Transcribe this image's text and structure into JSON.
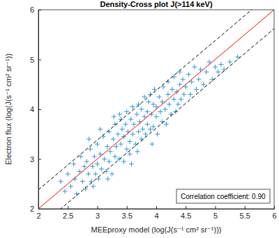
{
  "chart_data": {
    "type": "scatter",
    "title": "Density-Cross plot J(>114 keV)",
    "x_label": "MEEproxy model (log(J(s⁻¹ cm² sr⁻¹)))",
    "y_label": "Electron flux (log(J(s⁻¹ cm² sr⁻¹))",
    "color": "#2b9ad6",
    "marker": "plus",
    "grid": false,
    "xlim": [
      2,
      6
    ],
    "xticks": [
      2,
      2.5,
      3,
      3.5,
      4,
      4.5,
      5,
      5.5,
      6
    ],
    "ylim": [
      2,
      6
    ],
    "yticks": [
      2,
      3,
      4,
      5,
      6
    ],
    "x": [
      2.38,
      2.45,
      2.5,
      2.55,
      2.6,
      2.62,
      2.65,
      2.7,
      2.72,
      2.75,
      2.78,
      2.8,
      2.82,
      2.85,
      2.88,
      2.9,
      2.92,
      2.95,
      2.97,
      3.0,
      3.0,
      3.02,
      2.86,
      2.93,
      3.05,
      3.07,
      3.1,
      3.12,
      3.15,
      3.17,
      3.2,
      3.2,
      3.22,
      3.25,
      3.27,
      3.3,
      3.3,
      3.32,
      3.05,
      3.18,
      3.28,
      3.35,
      3.37,
      3.4,
      3.4,
      3.42,
      3.45,
      3.45,
      3.48,
      3.5,
      3.5,
      3.52,
      3.55,
      3.55,
      3.57,
      3.6,
      3.6,
      3.38,
      3.58,
      3.62,
      3.65,
      3.67,
      3.7,
      3.7,
      3.72,
      3.75,
      3.75,
      3.77,
      3.8,
      3.8,
      3.82,
      3.85,
      3.85,
      3.87,
      3.9,
      3.9,
      3.68,
      3.92,
      3.95,
      3.95,
      3.97,
      4.0,
      4.0,
      4.02,
      4.05,
      4.07,
      4.1,
      4.1,
      4.12,
      4.15,
      4.17,
      4.2,
      4.2,
      3.93,
      4.22,
      4.25,
      4.27,
      4.3,
      4.3,
      4.33,
      4.35,
      4.37,
      4.4,
      4.4,
      4.42,
      4.45,
      4.47,
      4.5,
      4.55,
      4.58,
      4.6,
      4.65,
      4.68,
      4.72,
      4.75,
      4.8,
      4.85,
      4.9,
      4.95,
      5.0,
      5.05,
      5.1,
      5.15,
      5.25,
      5.38
    ],
    "values": [
      2.55,
      2.35,
      2.7,
      2.45,
      2.9,
      2.6,
      2.3,
      2.75,
      3.05,
      2.55,
      2.85,
      2.4,
      2.95,
      2.7,
      3.2,
      2.55,
      2.85,
      3.05,
      2.7,
      3.3,
      2.9,
      2.6,
      3.4,
      2.45,
      3.1,
      2.8,
      3.45,
      3.0,
      2.75,
      3.25,
      3.55,
      2.95,
      3.15,
      2.7,
      3.4,
      3.05,
      3.7,
      3.25,
      3.6,
      2.6,
      3.85,
      3.5,
      3.0,
      3.3,
      3.8,
      3.6,
      2.95,
      3.45,
      3.7,
      3.2,
      3.95,
      3.55,
      3.35,
      3.1,
      3.8,
      3.5,
      4.05,
      3.9,
      2.9,
      3.7,
      3.3,
      3.9,
      3.55,
      4.1,
      3.75,
      3.4,
      4.0,
      3.6,
      3.85,
      4.25,
      3.5,
      3.95,
      3.7,
      4.15,
      3.6,
      4.3,
      3.15,
      3.9,
      4.1,
      3.65,
      4.4,
      3.85,
      4.05,
      3.5,
      4.25,
      3.95,
      4.15,
      3.75,
      4.45,
      4.0,
      3.7,
      4.3,
      4.55,
      3.3,
      4.1,
      3.9,
      4.4,
      4.2,
      4.65,
      3.95,
      4.35,
      4.1,
      4.5,
      4.75,
      4.2,
      4.6,
      4.3,
      4.45,
      4.7,
      4.3,
      4.55,
      4.85,
      4.4,
      4.6,
      4.8,
      4.5,
      4.75,
      4.95,
      4.6,
      4.85,
      4.75,
      4.9,
      4.8,
      4.95,
      5.05
    ],
    "reference_lines": [
      {
        "intercept": 0,
        "color": "#ff0000",
        "line_style": "solid"
      },
      {
        "intercept": 0.38,
        "color": "#000000",
        "line_style": "dashed"
      },
      {
        "intercept": -0.38,
        "color": "#000000",
        "line_style": "dashed"
      }
    ],
    "annotation": "Correlation coefficient: 0.90"
  }
}
